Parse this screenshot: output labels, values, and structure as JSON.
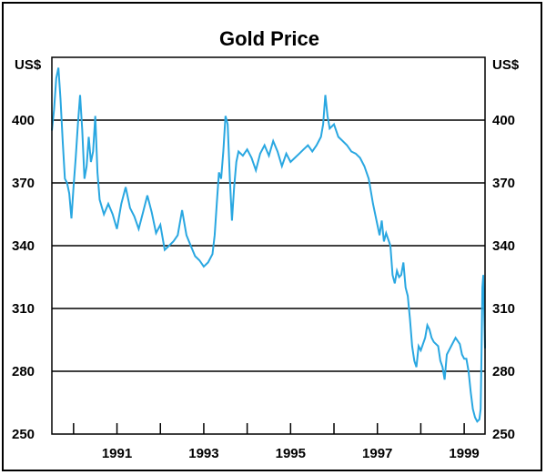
{
  "chart_data": {
    "type": "line",
    "title": "Gold Price",
    "ylabel_left": "US$",
    "ylabel_right": "US$",
    "ylim": [
      250,
      430
    ],
    "yticks": [
      250,
      280,
      310,
      340,
      370,
      400
    ],
    "xlim": [
      1989.5,
      1999.48
    ],
    "xticks": [
      1991,
      1993,
      1995,
      1997,
      1999
    ],
    "xtick_minor": [
      1990,
      1991,
      1992,
      1993,
      1994,
      1995,
      1996,
      1997,
      1998,
      1999
    ],
    "grid": "horizontal",
    "colors": {
      "line": "#29a7e1",
      "grid": "#000000",
      "axis": "#000000"
    },
    "series": [
      {
        "values": [
          [
            1989.5,
            395
          ],
          [
            1989.55,
            405
          ],
          [
            1989.6,
            420
          ],
          [
            1989.65,
            425
          ],
          [
            1989.7,
            410
          ],
          [
            1989.75,
            390
          ],
          [
            1989.8,
            372
          ],
          [
            1989.85,
            370
          ],
          [
            1989.9,
            365
          ],
          [
            1989.95,
            353
          ],
          [
            1990.0,
            368
          ],
          [
            1990.05,
            382
          ],
          [
            1990.1,
            398
          ],
          [
            1990.15,
            412
          ],
          [
            1990.2,
            395
          ],
          [
            1990.25,
            372
          ],
          [
            1990.3,
            378
          ],
          [
            1990.35,
            392
          ],
          [
            1990.4,
            380
          ],
          [
            1990.45,
            385
          ],
          [
            1990.5,
            402
          ],
          [
            1990.55,
            375
          ],
          [
            1990.6,
            362
          ],
          [
            1990.7,
            355
          ],
          [
            1990.8,
            360
          ],
          [
            1990.9,
            355
          ],
          [
            1991.0,
            348
          ],
          [
            1991.1,
            360
          ],
          [
            1991.2,
            368
          ],
          [
            1991.3,
            358
          ],
          [
            1991.4,
            354
          ],
          [
            1991.5,
            348
          ],
          [
            1991.6,
            356
          ],
          [
            1991.7,
            364
          ],
          [
            1991.8,
            356
          ],
          [
            1991.9,
            346
          ],
          [
            1992.0,
            350
          ],
          [
            1992.1,
            338
          ],
          [
            1992.2,
            340
          ],
          [
            1992.3,
            342
          ],
          [
            1992.4,
            345
          ],
          [
            1992.5,
            357
          ],
          [
            1992.6,
            345
          ],
          [
            1992.7,
            340
          ],
          [
            1992.8,
            335
          ],
          [
            1992.9,
            333
          ],
          [
            1993.0,
            330
          ],
          [
            1993.1,
            332
          ],
          [
            1993.2,
            336
          ],
          [
            1993.25,
            345
          ],
          [
            1993.3,
            360
          ],
          [
            1993.35,
            375
          ],
          [
            1993.4,
            372
          ],
          [
            1993.45,
            385
          ],
          [
            1993.5,
            402
          ],
          [
            1993.55,
            398
          ],
          [
            1993.6,
            372
          ],
          [
            1993.65,
            352
          ],
          [
            1993.7,
            368
          ],
          [
            1993.75,
            380
          ],
          [
            1993.8,
            385
          ],
          [
            1993.9,
            383
          ],
          [
            1994.0,
            386
          ],
          [
            1994.1,
            382
          ],
          [
            1994.2,
            376
          ],
          [
            1994.3,
            384
          ],
          [
            1994.4,
            388
          ],
          [
            1994.5,
            383
          ],
          [
            1994.6,
            390
          ],
          [
            1994.7,
            385
          ],
          [
            1994.8,
            378
          ],
          [
            1994.9,
            384
          ],
          [
            1995.0,
            380
          ],
          [
            1995.1,
            382
          ],
          [
            1995.2,
            384
          ],
          [
            1995.3,
            386
          ],
          [
            1995.4,
            388
          ],
          [
            1995.5,
            385
          ],
          [
            1995.6,
            388
          ],
          [
            1995.7,
            392
          ],
          [
            1995.75,
            398
          ],
          [
            1995.8,
            412
          ],
          [
            1995.85,
            402
          ],
          [
            1995.9,
            396
          ],
          [
            1996.0,
            398
          ],
          [
            1996.1,
            392
          ],
          [
            1996.2,
            390
          ],
          [
            1996.3,
            388
          ],
          [
            1996.4,
            385
          ],
          [
            1996.5,
            384
          ],
          [
            1996.6,
            382
          ],
          [
            1996.7,
            378
          ],
          [
            1996.8,
            372
          ],
          [
            1996.9,
            360
          ],
          [
            1997.0,
            350
          ],
          [
            1997.05,
            345
          ],
          [
            1997.1,
            352
          ],
          [
            1997.15,
            342
          ],
          [
            1997.2,
            346
          ],
          [
            1997.3,
            340
          ],
          [
            1997.35,
            326
          ],
          [
            1997.4,
            322
          ],
          [
            1997.45,
            328
          ],
          [
            1997.5,
            325
          ],
          [
            1997.55,
            326
          ],
          [
            1997.6,
            332
          ],
          [
            1997.65,
            320
          ],
          [
            1997.7,
            316
          ],
          [
            1997.75,
            305
          ],
          [
            1997.8,
            292
          ],
          [
            1997.85,
            285
          ],
          [
            1997.9,
            282
          ],
          [
            1997.95,
            292
          ],
          [
            1998.0,
            290
          ],
          [
            1998.1,
            296
          ],
          [
            1998.15,
            302
          ],
          [
            1998.2,
            300
          ],
          [
            1998.25,
            296
          ],
          [
            1998.3,
            294
          ],
          [
            1998.4,
            292
          ],
          [
            1998.45,
            285
          ],
          [
            1998.5,
            282
          ],
          [
            1998.55,
            276
          ],
          [
            1998.6,
            288
          ],
          [
            1998.7,
            292
          ],
          [
            1998.8,
            296
          ],
          [
            1998.9,
            293
          ],
          [
            1998.95,
            288
          ],
          [
            1999.0,
            286
          ],
          [
            1999.05,
            286
          ],
          [
            1999.1,
            280
          ],
          [
            1999.15,
            270
          ],
          [
            1999.2,
            262
          ],
          [
            1999.25,
            258
          ],
          [
            1999.3,
            256
          ],
          [
            1999.35,
            257
          ],
          [
            1999.38,
            262
          ],
          [
            1999.4,
            290
          ],
          [
            1999.42,
            320
          ],
          [
            1999.44,
            326
          ],
          [
            1999.46,
            310
          ],
          [
            1999.48,
            291
          ]
        ]
      }
    ]
  }
}
